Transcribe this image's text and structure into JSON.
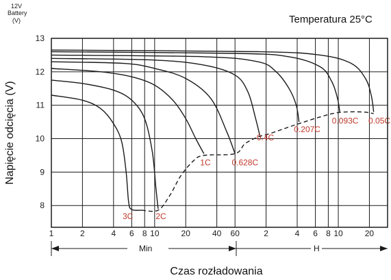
{
  "chart_data": {
    "type": "line",
    "title": "Temperatura 25°C",
    "corner_label": [
      "12V",
      "Battery",
      "(V)"
    ],
    "xlabel": "Czas rozładowania",
    "ylabel": "Napięcie odcięcia (V)",
    "y_ticks": [
      "8",
      "9",
      "10",
      "11",
      "12",
      "13"
    ],
    "ylim": [
      7.35,
      13
    ],
    "x_ticks": [
      {
        "label": "1",
        "minutes": 1
      },
      {
        "label": "2",
        "minutes": 2
      },
      {
        "label": "4",
        "minutes": 4
      },
      {
        "label": "6",
        "minutes": 6
      },
      {
        "label": "8",
        "minutes": 8
      },
      {
        "label": "10",
        "minutes": 10
      },
      {
        "label": "20",
        "minutes": 20
      },
      {
        "label": "40",
        "minutes": 40
      },
      {
        "label": "60",
        "minutes": 60
      },
      {
        "label": "2",
        "minutes": 120
      },
      {
        "label": "4",
        "minutes": 240
      },
      {
        "label": "6",
        "minutes": 360
      },
      {
        "label": "8",
        "minutes": 480
      },
      {
        "label": "10",
        "minutes": 600
      },
      {
        "label": "20",
        "minutes": 1200
      }
    ],
    "xlim_minutes": [
      1,
      1800
    ],
    "xscale": "log",
    "grid": true,
    "time_units": {
      "min_label": "Min",
      "h_label": "H"
    },
    "series": [
      {
        "name": "3C",
        "points": [
          [
            1,
            11.3
          ],
          [
            2,
            11.15
          ],
          [
            3,
            10.9
          ],
          [
            4,
            10.45
          ],
          [
            4.8,
            9.9
          ],
          [
            5.3,
            9.0
          ],
          [
            5.6,
            8.1
          ],
          [
            6,
            7.88
          ],
          [
            7.5,
            7.86
          ]
        ]
      },
      {
        "name": "2C",
        "points": [
          [
            1,
            11.75
          ],
          [
            2,
            11.65
          ],
          [
            4,
            11.45
          ],
          [
            6,
            11.15
          ],
          [
            8,
            10.6
          ],
          [
            9.5,
            9.6
          ],
          [
            10.3,
            8.5
          ],
          [
            10.8,
            7.9
          ]
        ]
      },
      {
        "name": "1C",
        "points": [
          [
            1,
            12.1
          ],
          [
            3,
            12.0
          ],
          [
            6,
            11.85
          ],
          [
            10,
            11.6
          ],
          [
            15,
            11.15
          ],
          [
            20,
            10.6
          ],
          [
            25,
            10.0
          ],
          [
            30,
            9.55
          ]
        ]
      },
      {
        "name": "0.628C",
        "points": [
          [
            1,
            12.3
          ],
          [
            5,
            12.25
          ],
          [
            10,
            12.1
          ],
          [
            20,
            11.8
          ],
          [
            35,
            11.2
          ],
          [
            50,
            10.2
          ],
          [
            60,
            9.55
          ]
        ]
      },
      {
        "name": "0.4C",
        "points": [
          [
            1,
            12.4
          ],
          [
            10,
            12.35
          ],
          [
            30,
            12.2
          ],
          [
            60,
            11.9
          ],
          [
            80,
            11.4
          ],
          [
            95,
            10.6
          ],
          [
            105,
            10.05
          ]
        ]
      },
      {
        "name": "0.207C",
        "points": [
          [
            1,
            12.5
          ],
          [
            30,
            12.45
          ],
          [
            100,
            12.3
          ],
          [
            150,
            12.0
          ],
          [
            200,
            11.5
          ],
          [
            235,
            11.0
          ],
          [
            250,
            10.5
          ]
        ]
      },
      {
        "name": "0.093C",
        "points": [
          [
            1,
            12.6
          ],
          [
            60,
            12.55
          ],
          [
            200,
            12.45
          ],
          [
            400,
            12.15
          ],
          [
            520,
            11.7
          ],
          [
            590,
            11.2
          ],
          [
            620,
            10.8
          ]
        ]
      },
      {
        "name": "0.05C",
        "points": [
          [
            1,
            12.65
          ],
          [
            100,
            12.6
          ],
          [
            400,
            12.5
          ],
          [
            800,
            12.25
          ],
          [
            1100,
            11.8
          ],
          [
            1250,
            11.3
          ],
          [
            1320,
            10.8
          ]
        ]
      }
    ],
    "cutoff_line": {
      "style": "dashed",
      "points": [
        [
          7.5,
          7.86
        ],
        [
          10.8,
          7.86
        ],
        [
          14,
          8.3
        ],
        [
          18,
          8.9
        ],
        [
          24,
          9.35
        ],
        [
          30,
          9.5
        ],
        [
          60,
          9.55
        ],
        [
          75,
          9.85
        ],
        [
          100,
          10.05
        ],
        [
          130,
          10.15
        ],
        [
          200,
          10.35
        ],
        [
          250,
          10.45
        ],
        [
          400,
          10.65
        ],
        [
          600,
          10.78
        ],
        [
          1000,
          10.8
        ],
        [
          1320,
          10.75
        ]
      ]
    },
    "curve_labels": [
      {
        "text": "3C",
        "x": 5.5,
        "y": 7.6
      },
      {
        "text": "2C",
        "x": 11.5,
        "y": 7.6
      },
      {
        "text": "1C",
        "x": 31,
        "y": 9.2
      },
      {
        "text": "0.628C",
        "x": 75,
        "y": 9.2
      },
      {
        "text": "0.4C",
        "x": 118,
        "y": 9.95
      },
      {
        "text": "0.207C",
        "x": 300,
        "y": 10.2
      },
      {
        "text": "0.093C",
        "x": 700,
        "y": 10.45
      },
      {
        "text": "0.05C",
        "x": 1500,
        "y": 10.45
      }
    ]
  }
}
